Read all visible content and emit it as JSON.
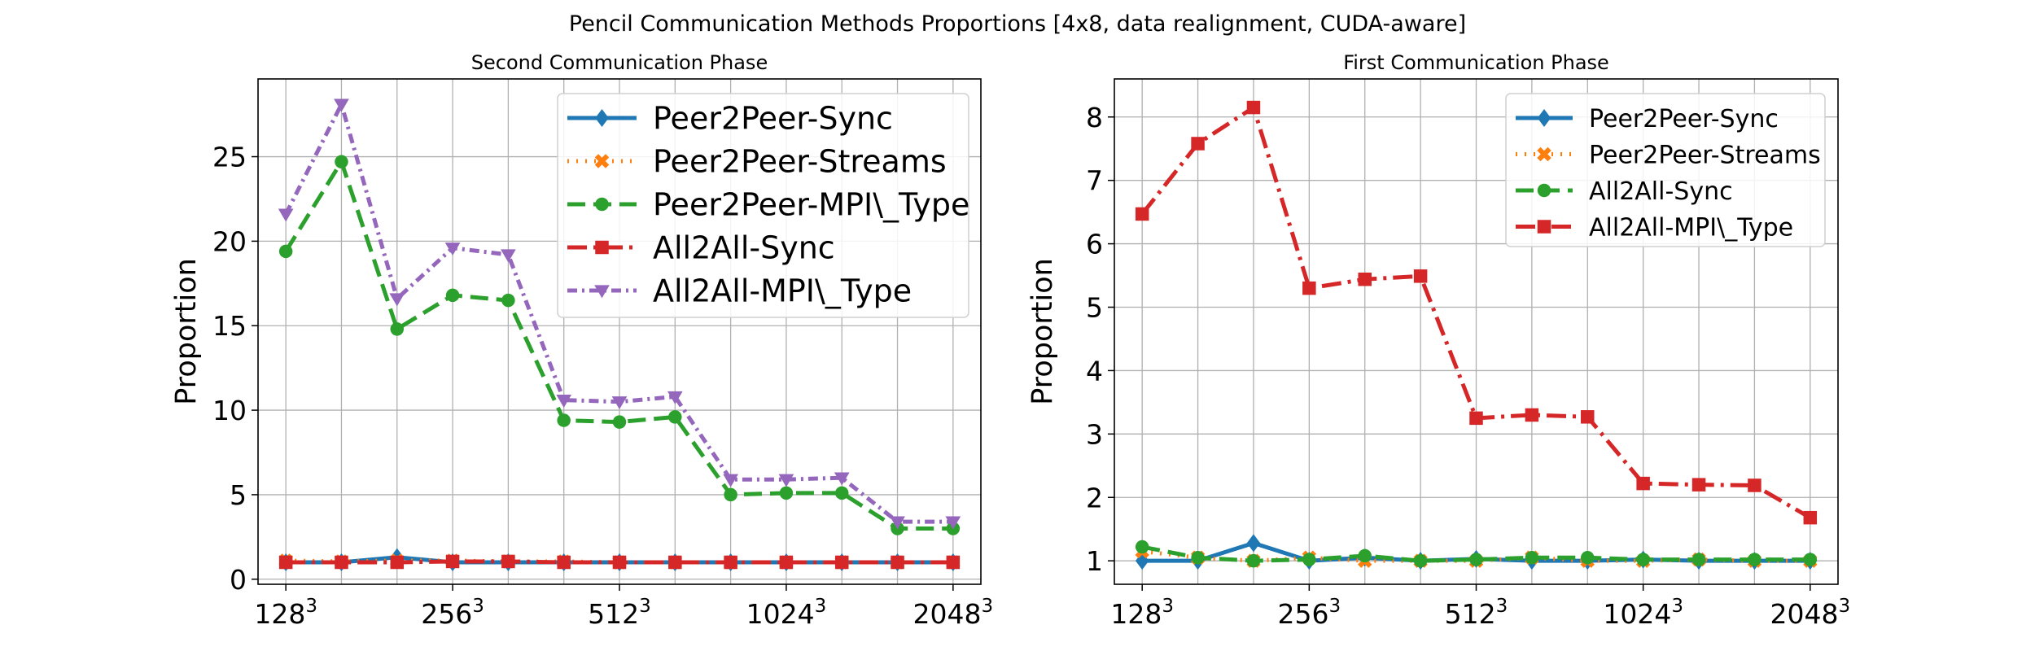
{
  "figure": {
    "suptitle": "Pencil Communication Methods Proportions [4x8, data realignment, CUDA-aware]"
  },
  "chart_data": [
    {
      "type": "line",
      "title": "Second Communication Phase",
      "xlabel": "",
      "ylabel": "Proportion",
      "x_tick_labels": [
        {
          "base": "128",
          "exp": "3"
        },
        {
          "base": "256",
          "exp": "3"
        },
        {
          "base": "512",
          "exp": "3"
        },
        {
          "base": "1024",
          "exp": "3"
        },
        {
          "base": "2048",
          "exp": "3"
        }
      ],
      "y_ticks": [
        0,
        5,
        10,
        15,
        20,
        25
      ],
      "ylim": [
        -0.3,
        29.6
      ],
      "grid": true,
      "legend_position": "top-right",
      "series": [
        {
          "name": "Peer2Peer-Sync",
          "color": "#1f77b4",
          "dash": "solid",
          "marker": "diamond",
          "values": [
            1.0,
            1.0,
            1.3,
            1.0,
            1.0,
            1.0,
            1.0,
            1.0,
            1.0,
            1.0,
            1.0,
            1.0,
            1.0
          ]
        },
        {
          "name": "Peer2Peer-Streams",
          "color": "#ff7f0e",
          "dash": "dotted",
          "marker": "x",
          "values": [
            1.1,
            1.05,
            1.1,
            1.1,
            1.05,
            1.05,
            1.0,
            1.0,
            1.0,
            1.0,
            1.0,
            1.0,
            1.0
          ]
        },
        {
          "name": "Peer2Peer-MPI\\_Type",
          "color": "#2ca02c",
          "dash": "dashed",
          "marker": "circle",
          "values": [
            19.4,
            24.7,
            14.8,
            16.8,
            16.5,
            9.4,
            9.3,
            9.6,
            5.0,
            5.1,
            5.1,
            3.0,
            3.0
          ]
        },
        {
          "name": "All2All-Sync",
          "color": "#d62728",
          "dash": "dashdot",
          "marker": "square",
          "values": [
            1.0,
            1.0,
            1.0,
            1.05,
            1.05,
            1.0,
            1.0,
            1.0,
            1.0,
            1.0,
            1.0,
            1.0,
            1.0
          ]
        },
        {
          "name": "All2All-MPI\\_Type",
          "color": "#9467bd",
          "dash": "dashdot-dense",
          "marker": "triangle-down",
          "values": [
            21.6,
            28.1,
            16.6,
            19.6,
            19.2,
            10.6,
            10.5,
            10.8,
            5.9,
            5.9,
            6.0,
            3.4,
            3.4
          ]
        }
      ]
    },
    {
      "type": "line",
      "title": "First Communication Phase",
      "xlabel": "",
      "ylabel": "Proportion",
      "x_tick_labels": [
        {
          "base": "128",
          "exp": "3"
        },
        {
          "base": "256",
          "exp": "3"
        },
        {
          "base": "512",
          "exp": "3"
        },
        {
          "base": "1024",
          "exp": "3"
        },
        {
          "base": "2048",
          "exp": "3"
        }
      ],
      "y_ticks": [
        1,
        2,
        3,
        4,
        5,
        6,
        7,
        8
      ],
      "ylim": [
        0.63,
        8.6
      ],
      "grid": true,
      "legend_position": "top-right",
      "series": [
        {
          "name": "Peer2Peer-Sync",
          "color": "#1f77b4",
          "dash": "solid",
          "marker": "diamond",
          "values": [
            1.0,
            1.0,
            1.28,
            1.0,
            1.05,
            1.0,
            1.03,
            1.0,
            1.0,
            1.02,
            1.0,
            1.0,
            1.0
          ]
        },
        {
          "name": "Peer2Peer-Streams",
          "color": "#ff7f0e",
          "dash": "dotted",
          "marker": "x",
          "values": [
            1.15,
            1.05,
            1.0,
            1.05,
            1.0,
            1.0,
            1.0,
            1.05,
            1.0,
            1.0,
            1.02,
            1.0,
            1.0
          ]
        },
        {
          "name": "All2All-Sync",
          "color": "#2ca02c",
          "dash": "dashed",
          "marker": "circle",
          "values": [
            1.22,
            1.05,
            1.0,
            1.02,
            1.08,
            1.0,
            1.02,
            1.05,
            1.05,
            1.02,
            1.02,
            1.02,
            1.02
          ]
        },
        {
          "name": "All2All-MPI\\_Type",
          "color": "#d62728",
          "dash": "dashdot",
          "marker": "square",
          "values": [
            6.47,
            7.58,
            8.15,
            5.3,
            5.44,
            5.49,
            3.25,
            3.3,
            3.27,
            2.22,
            2.2,
            2.19,
            1.68
          ]
        }
      ]
    }
  ]
}
